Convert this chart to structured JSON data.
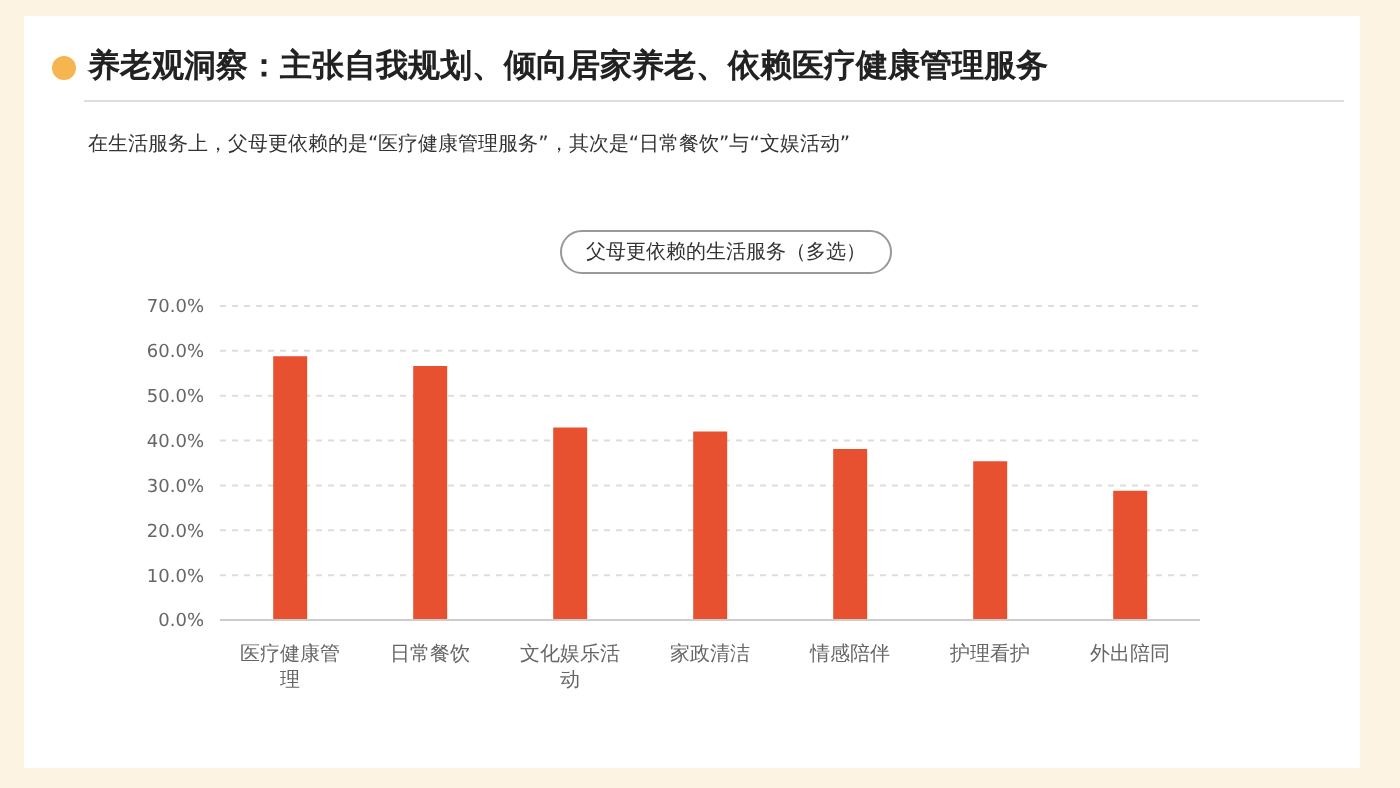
{
  "chart_data": {
    "type": "bar",
    "title": "养老观洞察：主张自我规划、倾向居家养老、依赖医疗健康管理服务",
    "subtitle": "在生活服务上，父母更依赖的是“医疗健康管理服务”，其次是“日常餐饮”与“文娱活动”",
    "legend_title": "父母更依赖的生活服务（多选）",
    "categories": [
      "医疗健康管理",
      "日常餐饮",
      "文化娱乐活动",
      "家政清洁",
      "情感陪伴",
      "护理看护",
      "外出陪同"
    ],
    "values": [
      58.8,
      56.6,
      42.9,
      42.0,
      38.1,
      35.4,
      28.8
    ],
    "color": "#e8512f",
    "ylim": [
      0,
      70
    ],
    "yticks": [
      {
        "value": 0,
        "label": "0.0%"
      },
      {
        "value": 10,
        "label": "10.0%"
      },
      {
        "value": 20,
        "label": "20.0%"
      },
      {
        "value": 30,
        "label": "30.0%"
      },
      {
        "value": 40,
        "label": "40.0%"
      },
      {
        "value": 50,
        "label": "50.0%"
      },
      {
        "value": 60,
        "label": "60.0%"
      },
      {
        "value": 70,
        "label": "70.0%"
      }
    ],
    "grid": "y"
  }
}
